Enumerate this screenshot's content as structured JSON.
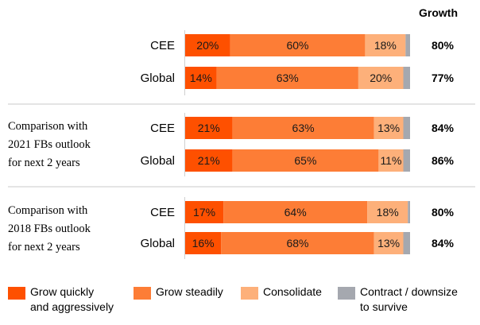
{
  "header": {
    "growth_label": "Growth"
  },
  "groups": [
    {
      "label": ""
    },
    {
      "label": "Comparison with\n2021 FBs outlook\nfor next 2 years"
    },
    {
      "label": "Comparison with\n2018 FBs outlook\nfor next 2 years"
    }
  ],
  "legend": [
    {
      "label": "Grow quickly\nand aggressively",
      "color": "#fe5000"
    },
    {
      "label": "Grow steadily",
      "color": "#fd7d36"
    },
    {
      "label": "Consolidate",
      "color": "#fdb07a"
    },
    {
      "label": "Contract / downsize\nto survive",
      "color": "#a5a8af"
    }
  ],
  "chart_data": {
    "type": "bar",
    "orientation": "horizontal",
    "stacked": true,
    "xlim": [
      0,
      100
    ],
    "series": [
      {
        "name": "Grow quickly and aggressively",
        "color": "#fe5000"
      },
      {
        "name": "Grow steadily",
        "color": "#fd7d36"
      },
      {
        "name": "Consolidate",
        "color": "#fdb07a"
      },
      {
        "name": "Contract / downsize to survive",
        "color": "#a5a8af"
      }
    ],
    "rows": [
      {
        "group": 0,
        "category": "CEE",
        "values": [
          20,
          60,
          18,
          2
        ],
        "labels": [
          "20%",
          "60%",
          "18%",
          ""
        ],
        "growth": "80%"
      },
      {
        "group": 0,
        "category": "Global",
        "values": [
          14,
          63,
          20,
          3
        ],
        "labels": [
          "14%",
          "63%",
          "20%",
          ""
        ],
        "growth": "77%"
      },
      {
        "group": 1,
        "category": "CEE",
        "values": [
          21,
          63,
          13,
          3
        ],
        "labels": [
          "21%",
          "63%",
          "13%",
          ""
        ],
        "growth": "84%"
      },
      {
        "group": 1,
        "category": "Global",
        "values": [
          21,
          65,
          11,
          3
        ],
        "labels": [
          "21%",
          "65%",
          "11%",
          ""
        ],
        "growth": "86%"
      },
      {
        "group": 2,
        "category": "CEE",
        "values": [
          17,
          64,
          18,
          1
        ],
        "labels": [
          "17%",
          "64%",
          "18%",
          ""
        ],
        "growth": "80%"
      },
      {
        "group": 2,
        "category": "Global",
        "values": [
          16,
          68,
          13,
          3
        ],
        "labels": [
          "16%",
          "68%",
          "13%",
          ""
        ],
        "growth": "84%"
      }
    ],
    "grid": false,
    "legend_position": "bottom"
  }
}
